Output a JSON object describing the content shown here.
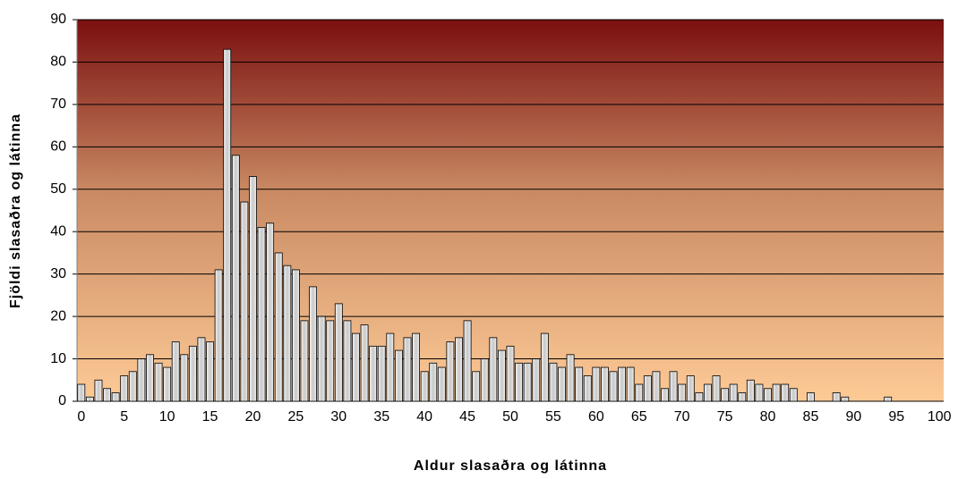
{
  "chart_data": {
    "type": "bar",
    "x_label": "Aldur slasaðra og látinna",
    "y_label": "Fjöldi slasaðra og látinna",
    "categories": [
      0,
      null,
      null,
      null,
      null,
      5,
      null,
      null,
      null,
      null,
      10,
      null,
      null,
      null,
      null,
      15,
      null,
      null,
      null,
      null,
      20,
      null,
      null,
      null,
      null,
      25,
      null,
      null,
      null,
      null,
      30,
      null,
      null,
      null,
      null,
      35,
      null,
      null,
      null,
      null,
      40,
      null,
      null,
      null,
      null,
      45,
      null,
      null,
      null,
      null,
      50,
      null,
      null,
      null,
      null,
      55,
      null,
      null,
      null,
      null,
      60,
      null,
      null,
      null,
      null,
      65,
      null,
      null,
      null,
      null,
      70,
      null,
      null,
      null,
      null,
      75,
      null,
      null,
      null,
      null,
      80,
      null,
      null,
      null,
      null,
      85,
      null,
      null,
      null,
      null,
      90,
      null,
      null,
      null,
      null,
      95,
      null,
      null,
      null,
      null,
      100
    ],
    "values": [
      4,
      1,
      5,
      3,
      2,
      6,
      7,
      10,
      11,
      9,
      8,
      14,
      11,
      13,
      15,
      14,
      31,
      83,
      58,
      47,
      53,
      41,
      42,
      35,
      32,
      31,
      19,
      27,
      20,
      19,
      23,
      19,
      16,
      18,
      13,
      13,
      16,
      12,
      15,
      16,
      7,
      9,
      8,
      14,
      15,
      19,
      7,
      10,
      15,
      12,
      13,
      9,
      9,
      10,
      16,
      9,
      8,
      11,
      8,
      6,
      8,
      8,
      7,
      8,
      8,
      4,
      6,
      7,
      3,
      7,
      4,
      6,
      2,
      4,
      6,
      3,
      4,
      2,
      5,
      4,
      3,
      4,
      4,
      3,
      0,
      2,
      0,
      0,
      2,
      1,
      0,
      0,
      0,
      0,
      1,
      0,
      0,
      0,
      0,
      0,
      0
    ],
    "color": "#dcdcdc",
    "ylim": [
      0,
      90
    ],
    "yticks": [
      0,
      10,
      20,
      30,
      40,
      50,
      60,
      70,
      80,
      90
    ],
    "grid": true
  }
}
